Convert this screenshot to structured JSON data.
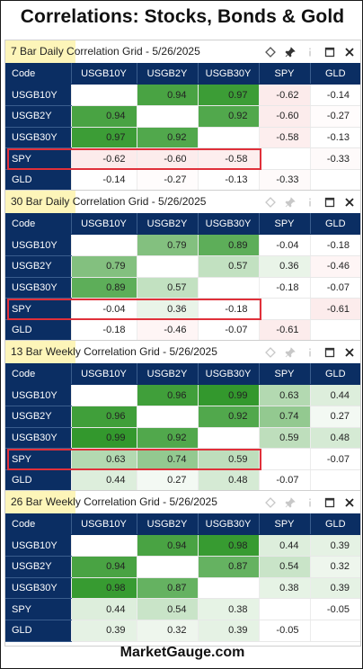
{
  "title": "Correlations: Stocks, Bonds & Gold",
  "footer": "MarketGauge.com",
  "code_header": "Code",
  "columns": [
    "USGB10Y",
    "USGB2Y",
    "USGB30Y",
    "SPY",
    "GLD"
  ],
  "rows": [
    "USGB10Y",
    "USGB2Y",
    "USGB30Y",
    "SPY",
    "GLD"
  ],
  "panels": [
    {
      "title": "7 Bar Daily Correlation Grid - 5/26/2025",
      "highlight_row": "SPY",
      "cells": [
        [
          "",
          "0.94",
          "0.97",
          "-0.62",
          "-0.14"
        ],
        [
          "0.94",
          "",
          "0.92",
          "-0.60",
          "-0.27"
        ],
        [
          "0.97",
          "0.92",
          "",
          "-0.58",
          "-0.13"
        ],
        [
          "-0.62",
          "-0.60",
          "-0.58",
          "",
          "-0.33"
        ],
        [
          "-0.14",
          "-0.27",
          "-0.13",
          "-0.33",
          ""
        ]
      ]
    },
    {
      "title": "30 Bar Daily Correlation Grid - 5/26/2025",
      "highlight_row": "SPY",
      "cells": [
        [
          "",
          "0.79",
          "0.89",
          "-0.04",
          "-0.18"
        ],
        [
          "0.79",
          "",
          "0.57",
          "0.36",
          "-0.46"
        ],
        [
          "0.89",
          "0.57",
          "",
          "-0.18",
          "-0.07"
        ],
        [
          "-0.04",
          "0.36",
          "-0.18",
          "",
          "-0.61"
        ],
        [
          "-0.18",
          "-0.46",
          "-0.07",
          "-0.61",
          ""
        ]
      ]
    },
    {
      "title": "13 Bar Weekly Correlation Grid - 5/26/2025",
      "highlight_row": "SPY",
      "cells": [
        [
          "",
          "0.96",
          "0.99",
          "0.63",
          "0.44"
        ],
        [
          "0.96",
          "",
          "0.92",
          "0.74",
          "0.27"
        ],
        [
          "0.99",
          "0.92",
          "",
          "0.59",
          "0.48"
        ],
        [
          "0.63",
          "0.74",
          "0.59",
          "",
          "-0.07"
        ],
        [
          "0.44",
          "0.27",
          "0.48",
          "-0.07",
          ""
        ]
      ]
    },
    {
      "title": "26 Bar Weekly Correlation Grid - 5/26/2025",
      "highlight_row": "",
      "cells": [
        [
          "",
          "0.94",
          "0.98",
          "0.44",
          "0.39"
        ],
        [
          "0.94",
          "",
          "0.87",
          "0.54",
          "0.32"
        ],
        [
          "0.98",
          "0.87",
          "",
          "0.38",
          "0.39"
        ],
        [
          "0.44",
          "0.54",
          "0.38",
          "",
          "-0.05"
        ],
        [
          "0.39",
          "0.32",
          "0.39",
          "-0.05",
          ""
        ]
      ]
    }
  ],
  "icons": [
    "diamond-icon",
    "pin-icon",
    "info-icon",
    "maximize-icon",
    "close-icon"
  ],
  "colors": {
    "header_bg": "#0b2e63",
    "highlight_box": "#e0303a",
    "title_highlight": "#fdf5b9",
    "positive": "#3fa23a",
    "negative": "#f08a8a"
  }
}
